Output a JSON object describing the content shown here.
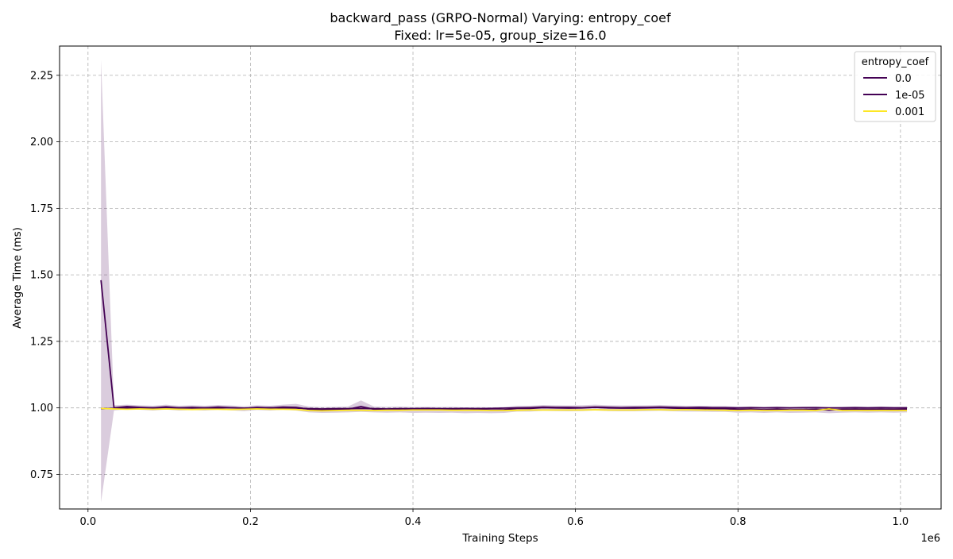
{
  "chart_data": {
    "type": "line",
    "title": "backward_pass (GRPO-Normal) Varying: entropy_coef",
    "subtitle": "Fixed: lr=5e-05, group_size=16.0",
    "xlabel": "Training Steps",
    "ylabel": "Average Time (ms)",
    "x_offset_label": "1e6",
    "xlim": [
      -0.035,
      1.05
    ],
    "ylim": [
      0.62,
      2.36
    ],
    "xticks": [
      0.0,
      0.2,
      0.4,
      0.6,
      0.8,
      1.0
    ],
    "xtick_labels": [
      "0.0",
      "0.2",
      "0.4",
      "0.6",
      "0.8",
      "1.0"
    ],
    "yticks": [
      0.75,
      1.0,
      1.25,
      1.5,
      1.75,
      2.0,
      2.25
    ],
    "ytick_labels": [
      "0.75",
      "1.00",
      "1.25",
      "1.50",
      "1.75",
      "2.00",
      "2.25"
    ],
    "grid": true,
    "legend": {
      "title": "entropy_coef",
      "placement": "top-right"
    },
    "x": [
      0.016,
      0.032,
      0.048,
      0.064,
      0.08,
      0.096,
      0.112,
      0.128,
      0.144,
      0.16,
      0.176,
      0.192,
      0.208,
      0.224,
      0.24,
      0.256,
      0.272,
      0.288,
      0.304,
      0.32,
      0.336,
      0.352,
      0.368,
      0.384,
      0.4,
      0.416,
      0.432,
      0.448,
      0.464,
      0.48,
      0.496,
      0.512,
      0.528,
      0.544,
      0.56,
      0.576,
      0.592,
      0.608,
      0.624,
      0.64,
      0.656,
      0.672,
      0.688,
      0.704,
      0.72,
      0.736,
      0.752,
      0.768,
      0.784,
      0.8,
      0.816,
      0.832,
      0.848,
      0.864,
      0.88,
      0.896,
      0.912,
      0.928,
      0.944,
      0.96,
      0.976,
      0.992,
      1.008
    ],
    "series": [
      {
        "name": "0.0",
        "color": "#440154",
        "values": [
          1.48,
          1.0,
          1.005,
          1.002,
          1.0,
          1.004,
          1.0,
          1.002,
          1.0,
          1.003,
          1.001,
          0.998,
          1.002,
          1.0,
          1.003,
          1.002,
          0.995,
          0.993,
          0.994,
          0.995,
          1.005,
          0.995,
          0.994,
          0.995,
          0.993,
          0.994,
          0.993,
          0.994,
          0.992,
          0.993,
          0.992,
          0.993,
          0.998,
          0.998,
          1.001,
          1.0,
          0.999,
          1.0,
          1.002,
          1.0,
          0.999,
          0.999,
          1.0,
          1.001,
          0.999,
          0.998,
          0.998,
          0.997,
          0.997,
          0.994,
          0.995,
          0.993,
          0.995,
          0.993,
          0.994,
          0.995,
          0.992,
          0.994,
          0.995,
          0.994,
          0.995,
          0.994,
          0.995
        ],
        "band_low": [
          0.645,
          0.99,
          0.995,
          0.993,
          0.99,
          0.994,
          0.99,
          0.992,
          0.99,
          0.993,
          0.991,
          0.988,
          0.992,
          0.99,
          0.993,
          0.99,
          0.983,
          0.981,
          0.982,
          0.983,
          0.985,
          0.983,
          0.982,
          0.983,
          0.981,
          0.982,
          0.981,
          0.982,
          0.98,
          0.981,
          0.98,
          0.981,
          0.986,
          0.986,
          0.989,
          0.988,
          0.987,
          0.988,
          0.99,
          0.988,
          0.987,
          0.987,
          0.988,
          0.989,
          0.987,
          0.986,
          0.986,
          0.985,
          0.985,
          0.982,
          0.983,
          0.981,
          0.983,
          0.981,
          0.982,
          0.983,
          0.98,
          0.982,
          0.983,
          0.982,
          0.983,
          0.982,
          0.983
        ],
        "band_high": [
          2.31,
          1.01,
          1.012,
          1.01,
          1.008,
          1.012,
          1.008,
          1.01,
          1.008,
          1.011,
          1.009,
          1.006,
          1.01,
          1.008,
          1.012,
          1.015,
          1.005,
          1.003,
          1.004,
          1.005,
          1.028,
          1.005,
          1.004,
          1.005,
          1.003,
          1.004,
          1.003,
          1.004,
          1.002,
          1.003,
          1.002,
          1.003,
          1.008,
          1.008,
          1.011,
          1.01,
          1.009,
          1.01,
          1.012,
          1.01,
          1.009,
          1.009,
          1.01,
          1.011,
          1.009,
          1.008,
          1.008,
          1.007,
          1.007,
          1.004,
          1.005,
          1.003,
          1.005,
          1.003,
          1.004,
          1.005,
          1.002,
          1.004,
          1.005,
          1.004,
          1.005,
          1.004,
          1.005
        ]
      },
      {
        "name": "1e-05",
        "color": "#440154",
        "values": [
          0.997,
          0.998,
          1.0,
          0.999,
          1.0,
          1.001,
          1.0,
          0.999,
          1.0,
          1.0,
          1.001,
          0.999,
          1.0,
          1.001,
          1.0,
          0.999,
          0.997,
          0.996,
          0.997,
          0.997,
          0.998,
          0.997,
          0.996,
          0.997,
          0.997,
          0.998,
          0.997,
          0.997,
          0.998,
          0.997,
          0.998,
          0.999,
          1.0,
          1.001,
          1.003,
          1.002,
          1.002,
          1.001,
          1.003,
          1.002,
          1.001,
          1.002,
          1.002,
          1.003,
          1.002,
          1.001,
          1.002,
          1.001,
          1.001,
          1.0,
          1.001,
          1.0,
          1.001,
          1.0,
          1.001,
          1.001,
          1.0,
          1.0,
          1.001,
          1.0,
          1.001,
          1.0,
          1.0
        ]
      },
      {
        "name": "0.001",
        "color": "#fde725",
        "values": [
          0.998,
          0.996,
          0.995,
          0.996,
          0.995,
          0.996,
          0.995,
          0.994,
          0.995,
          0.995,
          0.994,
          0.995,
          0.996,
          0.995,
          0.995,
          0.994,
          0.99,
          0.989,
          0.99,
          0.991,
          0.991,
          0.99,
          0.991,
          0.991,
          0.992,
          0.992,
          0.992,
          0.991,
          0.991,
          0.991,
          0.99,
          0.99,
          0.991,
          0.992,
          0.992,
          0.992,
          0.992,
          0.992,
          0.993,
          0.992,
          0.992,
          0.992,
          0.993,
          0.993,
          0.992,
          0.993,
          0.992,
          0.992,
          0.991,
          0.99,
          0.991,
          0.99,
          0.99,
          0.991,
          0.991,
          0.99,
          0.996,
          0.99,
          0.99,
          0.99,
          0.99,
          0.99,
          0.99
        ]
      }
    ]
  }
}
